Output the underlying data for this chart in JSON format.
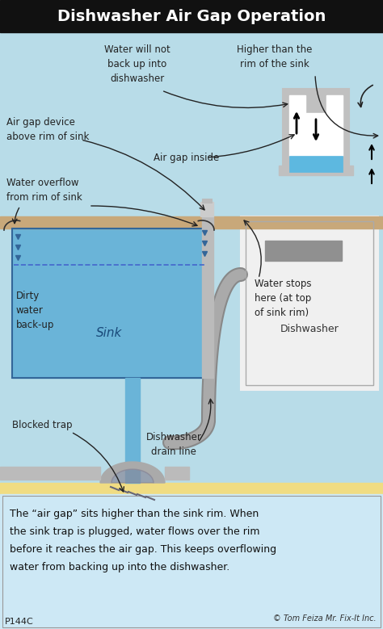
{
  "title": "Dishwasher Air Gap Operation",
  "title_color": "#ffffff",
  "title_bg": "#111111",
  "main_bg": "#b8dce8",
  "bottom_stripe_color": "#f0dc82",
  "text_box_bg": "#cde8f5",
  "body_text_line1": "The “air gap” sits higher than the sink rim. When",
  "body_text_line2": "the sink trap is plugged, water flows over the rim",
  "body_text_line3": "before it reaches the air gap. This keeps overflowing",
  "body_text_line4": "water from backing up into the dishwasher.",
  "copyright": "© Tom Feiza Mr. Fix-It Inc.",
  "code": "P144C",
  "labels": {
    "air_gap_device": "Air gap device\nabove rim of sink",
    "water_not_back": "Water will not\nback up into\ndishwasher",
    "higher_than": "Higher than the\nrim of the sink",
    "air_gap_inside": "Air gap inside",
    "water_overflow": "Water overflow\nfrom rim of sink",
    "sink": "Sink",
    "dishwasher": "Dishwasher",
    "dirty_water": "Dirty\nwater\nback-up",
    "blocked_trap": "Blocked trap",
    "drain_line": "Dishwasher\ndrain line",
    "water_stops": "Water stops\nhere (at top\nof sink rim)"
  },
  "sink_color": "#6ab4d8",
  "counter_color": "#c8a87a",
  "pipe_color": "#aaaaaa",
  "pipe_dark": "#888888",
  "dishwasher_color": "#f0f0f0",
  "dashed_line_color": "#4466cc",
  "circle_bg": "#b8dce8",
  "trap_fill": "#888899"
}
